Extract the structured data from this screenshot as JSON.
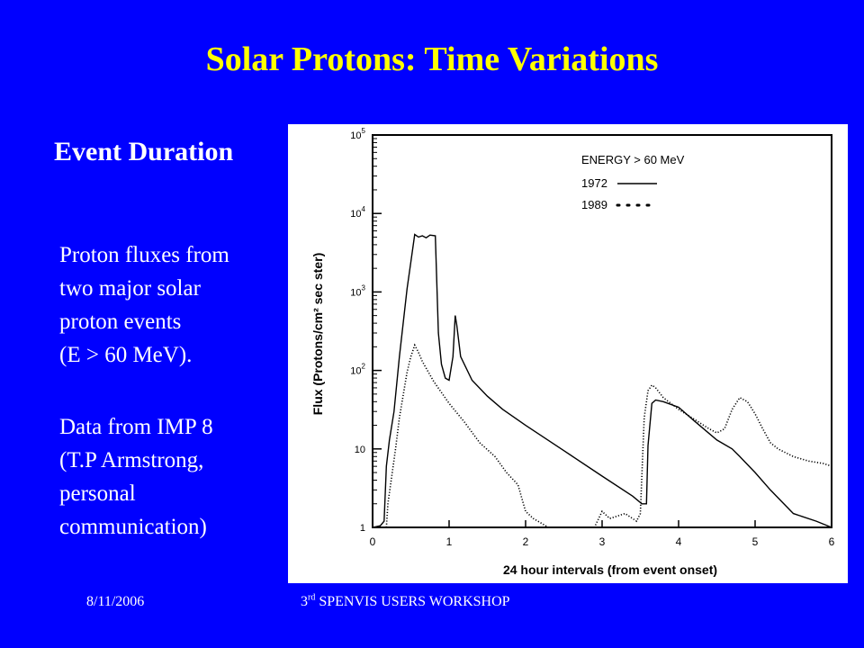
{
  "slide": {
    "title": "Solar Protons: Time Variations",
    "subtitle": "Event Duration",
    "paragraph1": "Proton fluxes from\ntwo major solar\nproton events\n(E > 60 MeV).",
    "paragraph2": "Data from IMP 8\n(T.P Armstrong,\npersonal\ncommunication)",
    "footer_date": "8/11/2006",
    "footer_event_prefix": "3",
    "footer_event_sup": "rd",
    "footer_event_rest": " SPENVIS USERS WORKSHOP"
  },
  "colors": {
    "background": "#0000ff",
    "title": "#ffff00",
    "text": "#ffffff",
    "chart_ink": "#000000"
  },
  "chart_data": {
    "type": "line",
    "title": "",
    "xlabel": "24 hour intervals (from event onset)",
    "ylabel": "Flux (Protons/cm² sec ster)",
    "xlim": [
      0,
      6
    ],
    "ylim": [
      1,
      100000
    ],
    "yscale": "log",
    "xticks": [
      "0",
      "1",
      "2",
      "3",
      "4",
      "5",
      "6"
    ],
    "yticks": [
      {
        "base": "1",
        "exp": ""
      },
      {
        "base": "10",
        "exp": ""
      },
      {
        "base": "10",
        "exp": "2"
      },
      {
        "base": "10",
        "exp": "3"
      },
      {
        "base": "10",
        "exp": "4"
      },
      {
        "base": "10",
        "exp": "5"
      }
    ],
    "legend": {
      "title": "ENERGY > 60 MeV",
      "placement": "top-right"
    },
    "series": [
      {
        "name": "1972",
        "style": "solid",
        "points": [
          [
            0,
            1
          ],
          [
            0.1,
            1.05
          ],
          [
            0.15,
            1.2
          ],
          [
            0.18,
            6
          ],
          [
            0.22,
            13
          ],
          [
            0.28,
            30
          ],
          [
            0.35,
            150
          ],
          [
            0.45,
            1100
          ],
          [
            0.5,
            2400
          ],
          [
            0.55,
            5400
          ],
          [
            0.6,
            5000
          ],
          [
            0.65,
            5200
          ],
          [
            0.7,
            4900
          ],
          [
            0.75,
            5300
          ],
          [
            0.82,
            5200
          ],
          [
            0.86,
            300
          ],
          [
            0.9,
            120
          ],
          [
            0.95,
            80
          ],
          [
            1.0,
            75
          ],
          [
            1.05,
            150
          ],
          [
            1.08,
            500
          ],
          [
            1.1,
            380
          ],
          [
            1.15,
            150
          ],
          [
            1.3,
            75
          ],
          [
            1.5,
            47
          ],
          [
            1.7,
            32
          ],
          [
            2.0,
            20
          ],
          [
            2.5,
            9.5
          ],
          [
            3.0,
            4.5
          ],
          [
            3.4,
            2.5
          ],
          [
            3.52,
            2.0
          ],
          [
            3.58,
            2.0
          ],
          [
            3.6,
            11
          ],
          [
            3.65,
            38
          ],
          [
            3.7,
            42
          ],
          [
            3.8,
            40
          ],
          [
            4.0,
            34
          ],
          [
            4.2,
            23
          ],
          [
            4.5,
            13
          ],
          [
            4.7,
            10
          ],
          [
            4.8,
            8
          ],
          [
            5.0,
            5
          ],
          [
            5.2,
            3
          ],
          [
            5.5,
            1.5
          ],
          [
            5.8,
            1.2
          ],
          [
            6.0,
            1.0
          ]
        ]
      },
      {
        "name": "1989",
        "style": "dotted",
        "points": [
          [
            0.18,
            1
          ],
          [
            0.2,
            2
          ],
          [
            0.25,
            4.5
          ],
          [
            0.3,
            10
          ],
          [
            0.35,
            25
          ],
          [
            0.45,
            95
          ],
          [
            0.5,
            150
          ],
          [
            0.55,
            210
          ],
          [
            0.6,
            170
          ],
          [
            0.65,
            130
          ],
          [
            0.8,
            72
          ],
          [
            1.0,
            38
          ],
          [
            1.2,
            22
          ],
          [
            1.4,
            12
          ],
          [
            1.6,
            8
          ],
          [
            1.75,
            5
          ],
          [
            1.9,
            3.5
          ],
          [
            2.0,
            1.6
          ],
          [
            2.1,
            1.3
          ],
          [
            2.3,
            1.0
          ],
          [
            2.9,
            1.0
          ],
          [
            3.0,
            1.6
          ],
          [
            3.1,
            1.3
          ],
          [
            3.3,
            1.5
          ],
          [
            3.45,
            1.2
          ],
          [
            3.5,
            1.5
          ],
          [
            3.55,
            25
          ],
          [
            3.6,
            55
          ],
          [
            3.65,
            65
          ],
          [
            3.7,
            60
          ],
          [
            3.8,
            45
          ],
          [
            4.0,
            32
          ],
          [
            4.2,
            24
          ],
          [
            4.4,
            18
          ],
          [
            4.5,
            16
          ],
          [
            4.6,
            18
          ],
          [
            4.7,
            32
          ],
          [
            4.8,
            45
          ],
          [
            4.9,
            40
          ],
          [
            5.0,
            28
          ],
          [
            5.1,
            18
          ],
          [
            5.2,
            12
          ],
          [
            5.3,
            10
          ],
          [
            5.5,
            8
          ],
          [
            5.7,
            7
          ],
          [
            5.9,
            6.5
          ],
          [
            6.0,
            6
          ]
        ]
      }
    ]
  }
}
